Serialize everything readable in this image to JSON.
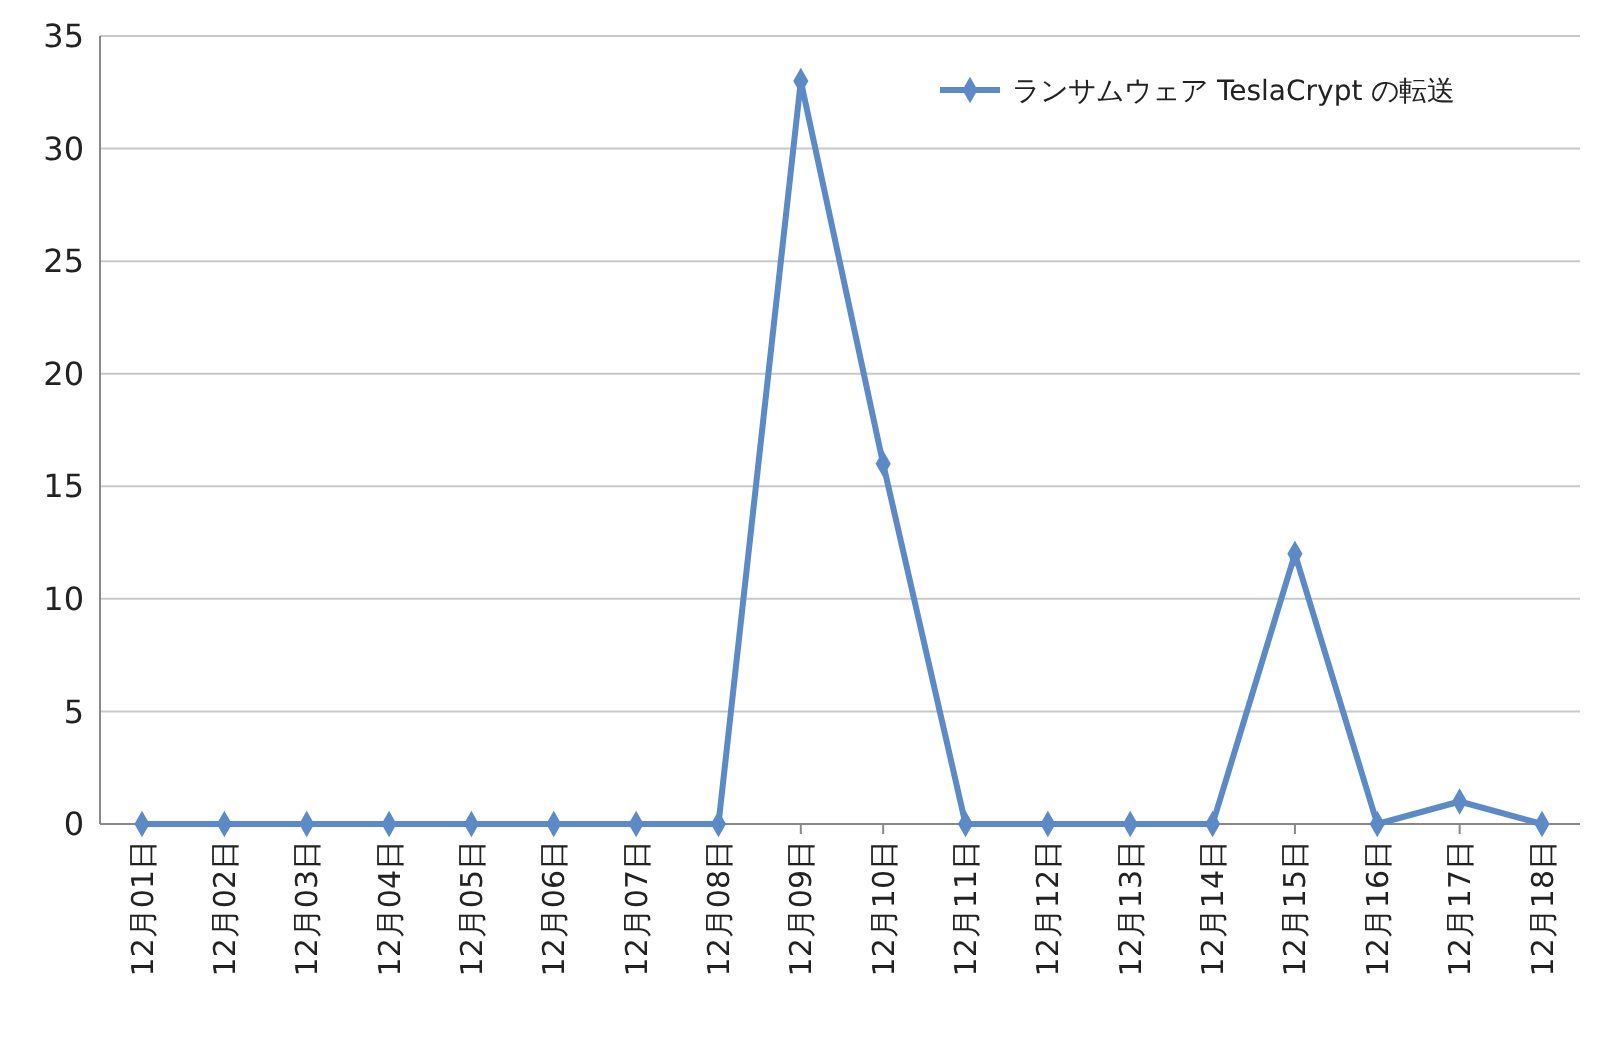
{
  "chart_data": {
    "type": "line",
    "categories": [
      "12月01日",
      "12月02日",
      "12月03日",
      "12月04日",
      "12月05日",
      "12月06日",
      "12月07日",
      "12月08日",
      "12月09日",
      "12月10日",
      "12月11日",
      "12月12日",
      "12月13日",
      "12月14日",
      "12月15日",
      "12月16日",
      "12月17日",
      "12月18日"
    ],
    "series": [
      {
        "name": "ランサムウェア TeslaCrypt の転送",
        "color": "#5b8ac6",
        "values": [
          0,
          0,
          0,
          0,
          0,
          0,
          0,
          0,
          33,
          16,
          0,
          0,
          0,
          0,
          12,
          0,
          1,
          0
        ]
      }
    ],
    "ylim": [
      0,
      35
    ],
    "yticks": [
      0,
      5,
      10,
      15,
      20,
      25,
      30,
      35
    ],
    "grid": "y",
    "legend": "top right",
    "marker": "diamond",
    "line_style": "solid"
  }
}
